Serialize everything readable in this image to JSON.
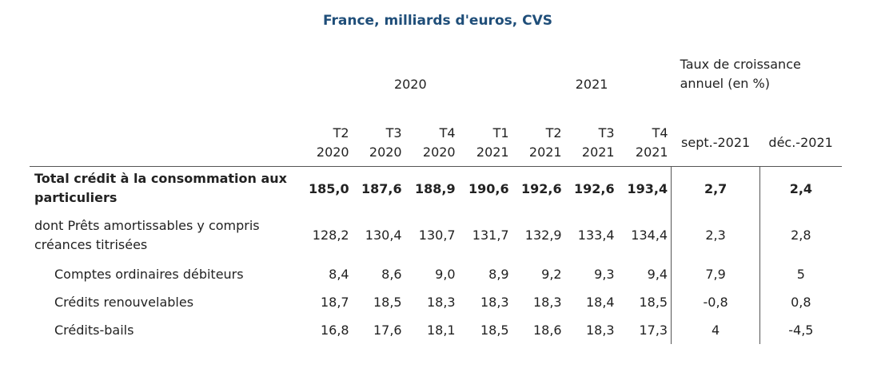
{
  "title": "France, milliards d'euros, CVS",
  "header": {
    "year_2020": "2020",
    "year_2021": "2021",
    "rate_label": "Taux de croissance annuel (en %)",
    "quarters": [
      {
        "q": "T2",
        "y": "2020"
      },
      {
        "q": "T3",
        "y": "2020"
      },
      {
        "q": "T4",
        "y": "2020"
      },
      {
        "q": "T1",
        "y": "2021"
      },
      {
        "q": "T2",
        "y": "2021"
      },
      {
        "q": "T3",
        "y": "2021"
      },
      {
        "q": "T4",
        "y": "2021"
      }
    ],
    "rate_cols": [
      "sept.-2021",
      "déc.-2021"
    ]
  },
  "rows": [
    {
      "label": "Total crédit à la consommation aux particuliers",
      "bold": true,
      "indent": false,
      "values": [
        "185,0",
        "187,6",
        "188,9",
        "190,6",
        "192,6",
        "192,6",
        "193,4"
      ],
      "rates": [
        "2,7",
        "2,4"
      ]
    },
    {
      "label": "dont Prêts amortissables y compris créances titrisées",
      "bold": false,
      "indent": false,
      "values": [
        "128,2",
        "130,4",
        "130,7",
        "131,7",
        "132,9",
        "133,4",
        "134,4"
      ],
      "rates": [
        "2,3",
        "2,8"
      ]
    },
    {
      "label": "Comptes ordinaires débiteurs",
      "bold": false,
      "indent": true,
      "values": [
        "8,4",
        "8,6",
        "9,0",
        "8,9",
        "9,2",
        "9,3",
        "9,4"
      ],
      "rates": [
        "7,9",
        "5"
      ]
    },
    {
      "label": "Crédits renouvelables",
      "bold": false,
      "indent": true,
      "values": [
        "18,7",
        "18,5",
        "18,3",
        "18,3",
        "18,3",
        "18,4",
        "18,5"
      ],
      "rates": [
        "-0,8",
        "0,8"
      ]
    },
    {
      "label": "Crédits-bails",
      "bold": false,
      "indent": true,
      "values": [
        "16,8",
        "17,6",
        "18,1",
        "18,5",
        "18,6",
        "18,3",
        "17,3"
      ],
      "rates": [
        "4",
        "-4,5"
      ]
    }
  ]
}
